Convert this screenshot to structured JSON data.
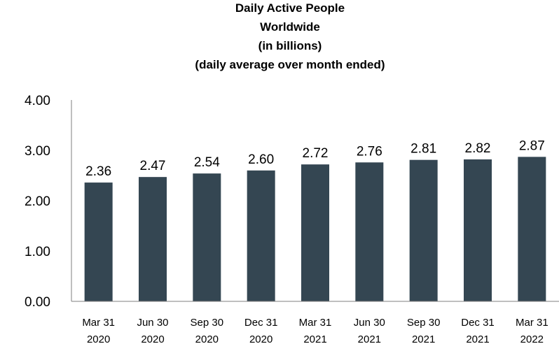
{
  "chart_data": {
    "type": "bar",
    "title_lines": [
      "Daily Active People",
      "Worldwide",
      "(in billions)",
      "(daily average over month ended)"
    ],
    "categories": [
      [
        "Mar 31",
        "2020"
      ],
      [
        "Jun 30",
        "2020"
      ],
      [
        "Sep 30",
        "2020"
      ],
      [
        "Dec 31",
        "2020"
      ],
      [
        "Mar 31",
        "2021"
      ],
      [
        "Jun 30",
        "2021"
      ],
      [
        "Sep 30",
        "2021"
      ],
      [
        "Dec 31",
        "2021"
      ],
      [
        "Mar 31",
        "2022"
      ]
    ],
    "values": [
      2.36,
      2.47,
      2.54,
      2.6,
      2.72,
      2.76,
      2.81,
      2.82,
      2.87
    ],
    "value_labels": [
      "2.36",
      "2.47",
      "2.54",
      "2.60",
      "2.72",
      "2.76",
      "2.81",
      "2.82",
      "2.87"
    ],
    "yticks": [
      0,
      1,
      2,
      3,
      4
    ],
    "ytick_labels": [
      "0.00",
      "1.00",
      "2.00",
      "3.00",
      "4.00"
    ],
    "ylim": [
      0,
      4
    ],
    "bar_color": "#344652",
    "axis_color": "#7f7f7f",
    "grid": false,
    "legend": "none"
  }
}
